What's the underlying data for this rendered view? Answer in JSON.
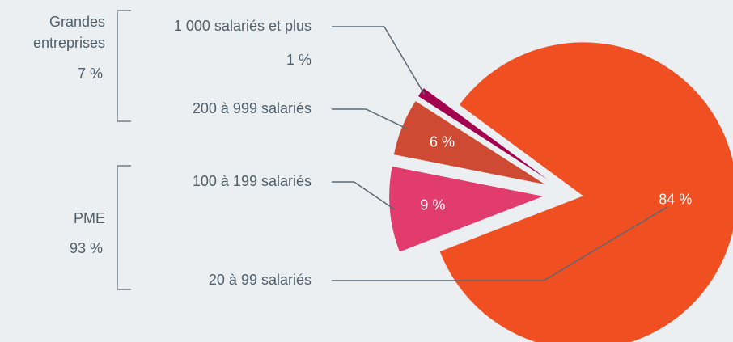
{
  "chart_data": {
    "type": "pie",
    "categories": [
      "1 000 salariés et plus",
      "200 à 999 salariés",
      "100 à 199 salariés",
      "20 à 99 salariés"
    ],
    "values": [
      1,
      6,
      9,
      84
    ],
    "value_labels": [
      "1 %",
      "6 %",
      "9 %",
      "84 %"
    ],
    "colors": [
      "#a3004e",
      "#cf4a33",
      "#e23b6e",
      "#f04f22"
    ],
    "groups": [
      {
        "name": "Grandes entreprises",
        "value": 7,
        "value_label": "7 %"
      },
      {
        "name": "PME",
        "value": 93,
        "value_label": "93 %"
      }
    ]
  }
}
